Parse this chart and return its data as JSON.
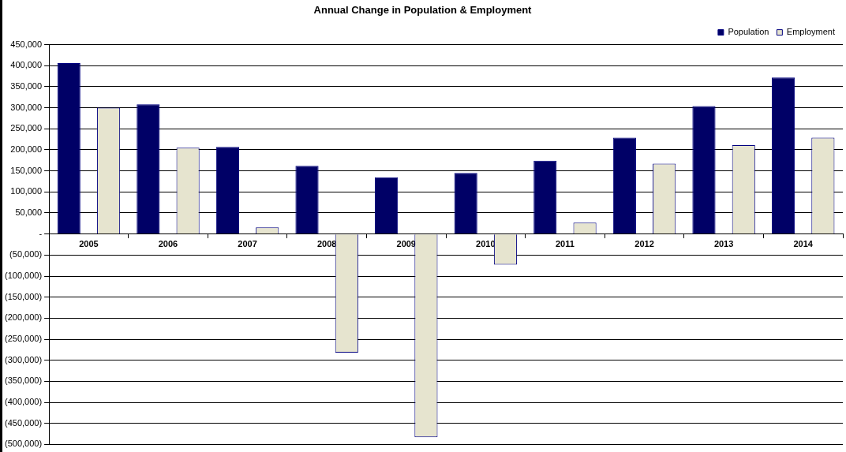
{
  "chart_data": {
    "type": "bar",
    "title": "Annual Change in Population & Employment",
    "categories": [
      "2005",
      "2006",
      "2007",
      "2008",
      "2009",
      "2010",
      "2011",
      "2012",
      "2013",
      "2014"
    ],
    "series": [
      {
        "name": "Population",
        "color": "#000066",
        "values": [
          406000,
          308000,
          207000,
          162000,
          135000,
          145000,
          174000,
          229000,
          304000,
          372000
        ]
      },
      {
        "name": "Employment",
        "color": "#e6e4cf",
        "values": [
          300000,
          205000,
          16000,
          -282000,
          -483000,
          -73000,
          27000,
          167000,
          211000,
          229000
        ]
      }
    ],
    "ylim": [
      -500000,
      450000
    ],
    "yticks": [
      {
        "value": -500000,
        "label": "(500,000)"
      },
      {
        "value": -450000,
        "label": "(450,000)"
      },
      {
        "value": -400000,
        "label": "(400,000)"
      },
      {
        "value": -350000,
        "label": "(350,000)"
      },
      {
        "value": -300000,
        "label": "(300,000)"
      },
      {
        "value": -250000,
        "label": "(250,000)"
      },
      {
        "value": -200000,
        "label": "(200,000)"
      },
      {
        "value": -150000,
        "label": "(150,000)"
      },
      {
        "value": -100000,
        "label": "(100,000)"
      },
      {
        "value": -50000,
        "label": "(50,000)"
      },
      {
        "value": 0,
        "label": "-"
      },
      {
        "value": 50000,
        "label": "50,000"
      },
      {
        "value": 100000,
        "label": "100,000"
      },
      {
        "value": 150000,
        "label": "150,000"
      },
      {
        "value": 200000,
        "label": "200,000"
      },
      {
        "value": 250000,
        "label": "250,000"
      },
      {
        "value": 300000,
        "label": "300,000"
      },
      {
        "value": 350000,
        "label": "350,000"
      },
      {
        "value": 400000,
        "label": "400,000"
      },
      {
        "value": 450000,
        "label": "450,000"
      }
    ],
    "grid": "y",
    "legend": "top right"
  }
}
